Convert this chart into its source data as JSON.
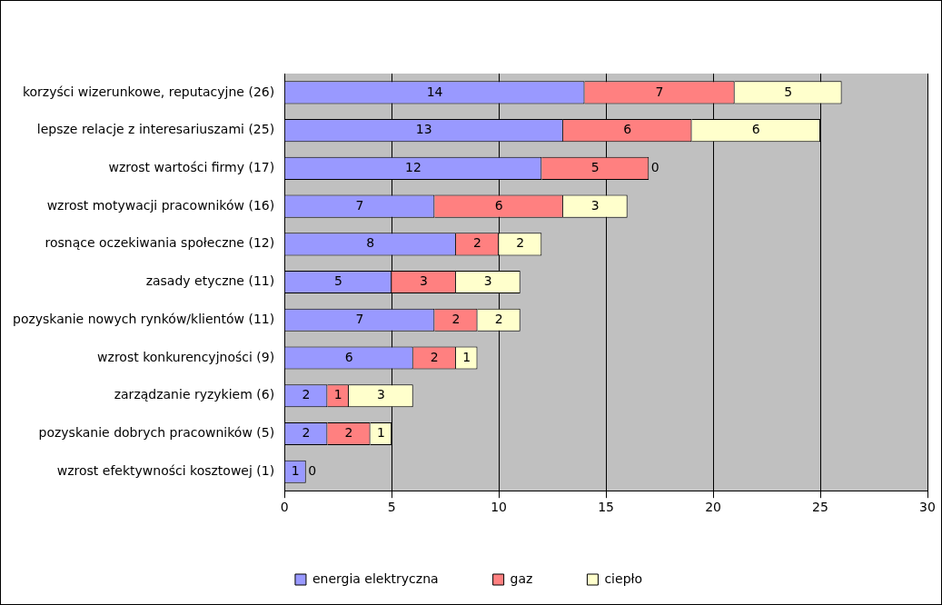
{
  "chart_data": {
    "type": "bar",
    "orientation": "horizontal",
    "stacked": true,
    "categories": [
      "korzyści wizerunkowe, reputacyjne (26)",
      "lepsze relacje z interesariuszami (25)",
      "wzrost wartości firmy (17)",
      "wzrost motywacji pracowników (16)",
      "rosnące oczekiwania społeczne (12)",
      "zasady etyczne (11)",
      "pozyskanie nowych rynków/klientów (11)",
      "wzrost konkurencyjności (9)",
      "zarządzanie ryzykiem (6)",
      "pozyskanie dobrych pracowników (5)",
      "wzrost efektywności kosztowej (1)"
    ],
    "series": [
      {
        "name": "energia elektryczna",
        "color": "#9999ff",
        "values": [
          14,
          13,
          12,
          7,
          8,
          5,
          7,
          6,
          2,
          2,
          1
        ],
        "value_labels": [
          "14",
          "13",
          "12",
          "7",
          "8",
          "5",
          "7",
          "6",
          "2",
          "2",
          "1"
        ]
      },
      {
        "name": "gaz",
        "color": "#ff8080",
        "values": [
          7,
          6,
          5,
          6,
          2,
          3,
          2,
          2,
          1,
          2,
          0
        ],
        "value_labels": [
          "7",
          "6",
          "5",
          "6",
          "2",
          "3",
          "2",
          "2",
          "1",
          "2",
          "0"
        ]
      },
      {
        "name": "ciepło",
        "color": "#ffffcc",
        "values": [
          5,
          6,
          0,
          3,
          2,
          3,
          2,
          1,
          3,
          1,
          0
        ],
        "value_labels": [
          "5",
          "6",
          "0",
          "3",
          "2",
          "3",
          "2",
          "1",
          "3",
          "1",
          null
        ]
      }
    ],
    "xlim": [
      0,
      30
    ],
    "xticks": [
      0,
      5,
      10,
      15,
      20,
      25,
      30
    ],
    "grid": "x",
    "legend": "bottom"
  }
}
